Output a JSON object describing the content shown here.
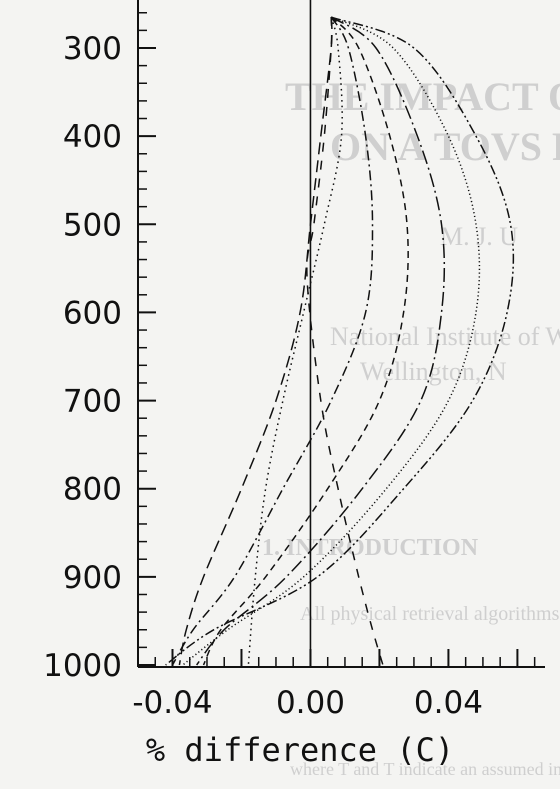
{
  "chart_data": {
    "type": "line",
    "title": "",
    "xlabel": "% difference (C)",
    "ylabel": "",
    "xlim": [
      -0.05,
      0.068
    ],
    "ylim": [
      250,
      1000
    ],
    "y_inverted": true,
    "grid": false,
    "legend": "none",
    "xticks": [
      {
        "value": -0.04,
        "label": "-0.04"
      },
      {
        "value": 0.0,
        "label": "0.00"
      },
      {
        "value": 0.04,
        "label": "0.04"
      }
    ],
    "yticks": [
      {
        "value": 300,
        "label": "300"
      },
      {
        "value": 400,
        "label": "400"
      },
      {
        "value": 500,
        "label": "500"
      },
      {
        "value": 600,
        "label": "600"
      },
      {
        "value": 700,
        "label": "700"
      },
      {
        "value": 800,
        "label": "800"
      },
      {
        "value": 900,
        "label": "900"
      },
      {
        "value": 1000,
        "label": "1000"
      }
    ],
    "reference_line_x": 0,
    "series": [
      {
        "dash": "long-dash",
        "points": [
          [
            0.006,
            265
          ],
          [
            0.006,
            300
          ],
          [
            0.003,
            400
          ],
          [
            0.0,
            500
          ],
          [
            -0.003,
            600
          ],
          [
            -0.01,
            700
          ],
          [
            -0.02,
            800
          ],
          [
            -0.031,
            900
          ],
          [
            -0.036,
            960
          ],
          [
            -0.038,
            1000
          ]
        ]
      },
      {
        "dash": "dot",
        "points": [
          [
            0.006,
            265
          ],
          [
            0.008,
            300
          ],
          [
            0.009,
            400
          ],
          [
            0.004,
            500
          ],
          [
            -0.002,
            600
          ],
          [
            -0.008,
            700
          ],
          [
            -0.013,
            800
          ],
          [
            -0.016,
            900
          ],
          [
            -0.018,
            1000
          ]
        ]
      },
      {
        "dash": "dash-dot",
        "points": [
          [
            0.006,
            265
          ],
          [
            0.011,
            300
          ],
          [
            0.016,
            400
          ],
          [
            0.018,
            500
          ],
          [
            0.016,
            600
          ],
          [
            0.006,
            700
          ],
          [
            -0.008,
            800
          ],
          [
            -0.022,
            900
          ],
          [
            -0.034,
            960
          ],
          [
            -0.04,
            1000
          ]
        ]
      },
      {
        "dash": "medium-dash",
        "points": [
          [
            0.006,
            265
          ],
          [
            0.014,
            300
          ],
          [
            0.023,
            400
          ],
          [
            0.028,
            500
          ],
          [
            0.027,
            600
          ],
          [
            0.02,
            700
          ],
          [
            0.005,
            800
          ],
          [
            -0.013,
            900
          ],
          [
            -0.026,
            960
          ],
          [
            -0.031,
            1000
          ]
        ]
      },
      {
        "dash": "long-dash-dot",
        "points": [
          [
            0.006,
            265
          ],
          [
            0.019,
            300
          ],
          [
            0.031,
            400
          ],
          [
            0.038,
            500
          ],
          [
            0.038,
            600
          ],
          [
            0.032,
            700
          ],
          [
            0.015,
            800
          ],
          [
            -0.007,
            900
          ],
          [
            -0.025,
            960
          ],
          [
            -0.033,
            1000
          ]
        ]
      },
      {
        "dash": "fine-dot",
        "points": [
          [
            0.006,
            265
          ],
          [
            0.024,
            300
          ],
          [
            0.04,
            400
          ],
          [
            0.048,
            500
          ],
          [
            0.048,
            600
          ],
          [
            0.04,
            700
          ],
          [
            0.022,
            800
          ],
          [
            -0.002,
            900
          ],
          [
            -0.024,
            960
          ],
          [
            -0.037,
            1000
          ]
        ]
      },
      {
        "dash": "dash-dot-dot",
        "points": [
          [
            0.006,
            265
          ],
          [
            0.03,
            300
          ],
          [
            0.048,
            400
          ],
          [
            0.058,
            500
          ],
          [
            0.057,
            600
          ],
          [
            0.047,
            700
          ],
          [
            0.027,
            800
          ],
          [
            0.002,
            900
          ],
          [
            -0.028,
            960
          ],
          [
            -0.042,
            1000
          ]
        ]
      },
      {
        "dash": "sparse-dash",
        "points": [
          [
            0.006,
            265
          ],
          [
            0.006,
            300
          ],
          [
            0.004,
            400
          ],
          [
            0.001,
            500
          ],
          [
            -0.001,
            560
          ],
          [
            0.003,
            700
          ],
          [
            0.008,
            800
          ],
          [
            0.014,
            900
          ],
          [
            0.018,
            960
          ],
          [
            0.021,
            1000
          ]
        ]
      }
    ]
  },
  "bleed_through": {
    "lines": [
      "THE IMPACT OF TOT",
      "ON A TOVS RETR",
      "M. J. U",
      "National Institute of Water",
      "Wellington, N",
      "1. INTRODUCTION",
      "All physical retrieval algorithms, whether expl",
      "where  T  and  T  indicate an assumed in"
    ]
  }
}
